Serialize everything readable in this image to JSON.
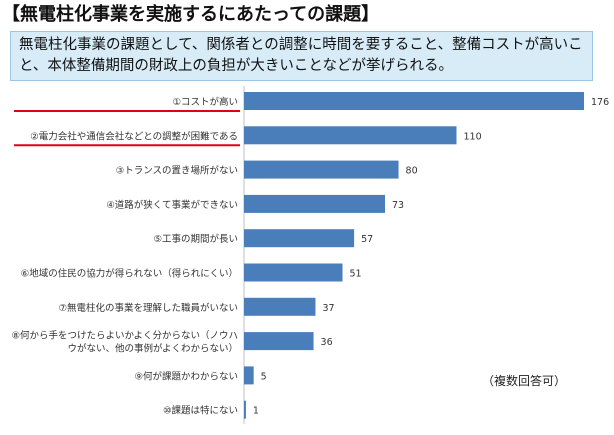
{
  "header": {
    "title": "【無電柱化事業を実施するにあたっての課題】",
    "summary": "無電柱化事業の課題として、関係者との調整に時間を要すること、整備コストが高いこと、本体整備期間の財政上の負担が大きいことなどが挙げられる。"
  },
  "chart_data": {
    "type": "bar",
    "orientation": "horizontal",
    "categories": [
      [
        "①コストが高い"
      ],
      [
        "②電力会社や通信会社などとの調整が困難である"
      ],
      [
        "③トランスの置き場所がない"
      ],
      [
        "④道路が狭くて事業ができない"
      ],
      [
        "⑤工事の期間が長い"
      ],
      [
        "⑥地域の住民の協力が得られない（得られにくい）"
      ],
      [
        "⑦無電柱化の事業を理解した職員がいない"
      ],
      [
        "⑧何から手をつけたらよいかよく分からない（ノウハ",
        "ウがない、他の事例がよくわからない）"
      ],
      [
        "⑨何が課題かわからない"
      ],
      [
        "⑩課題は特にない"
      ]
    ],
    "values": [
      176,
      110,
      80,
      73,
      57,
      51,
      37,
      36,
      5,
      1
    ],
    "underlined": [
      true,
      true,
      false,
      false,
      false,
      false,
      false,
      false,
      false,
      false
    ],
    "bar_color": "#4a7ebb",
    "underline_color": "#e0001b",
    "xlim": [
      0,
      176
    ],
    "grid": false,
    "note": "（複数回答可）"
  }
}
